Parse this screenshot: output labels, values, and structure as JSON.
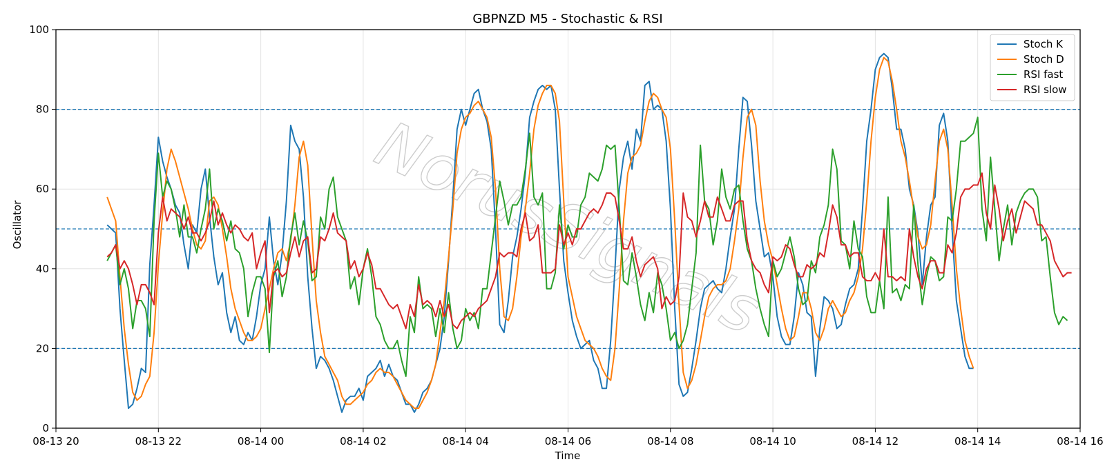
{
  "chart_data": {
    "type": "line",
    "title": "GBPNZD M5 - Stochastic & RSI",
    "xlabel": "Time",
    "ylabel": "Oscillator",
    "ylim": [
      0,
      100
    ],
    "xlim": [
      "08-13 20:00",
      "08-14 16:00"
    ],
    "yticks": [
      "0",
      "20",
      "40",
      "60",
      "80",
      "100"
    ],
    "xticks": [
      "08-13 20",
      "08-13 22",
      "08-14 00",
      "08-14 02",
      "08-14 04",
      "08-14 06",
      "08-14 08",
      "08-14 10",
      "08-14 12",
      "08-14 14",
      "08-14 16"
    ],
    "reference_lines": [
      80,
      50,
      20
    ],
    "grid": true,
    "legend_position": "upper right",
    "x_start": "08-13 21:00",
    "x_step": "5 minutes",
    "watermark": "NorusSignals",
    "series": [
      {
        "name": "Stoch K",
        "color": "#1f77b4",
        "values": [
          51,
          50,
          49,
          30,
          17,
          5,
          6,
          10,
          15,
          14,
          41,
          56,
          73,
          67,
          63,
          60,
          56,
          54,
          46,
          40,
          51,
          49,
          60,
          65,
          53,
          43,
          36,
          39,
          29,
          24,
          28,
          22,
          21,
          24,
          22,
          28,
          36,
          40,
          53,
          42,
          36,
          44,
          57,
          76,
          72,
          70,
          58,
          38,
          25,
          15,
          18,
          17,
          15,
          12,
          8,
          4,
          7,
          8,
          8,
          10,
          7,
          13,
          14,
          15,
          17,
          13,
          16,
          13,
          12,
          9,
          6,
          6,
          4,
          6,
          9,
          10,
          12,
          16,
          20,
          28,
          42,
          58,
          75,
          80,
          76,
          80,
          84,
          85,
          80,
          77,
          70,
          50,
          26,
          24,
          32,
          43,
          48,
          55,
          64,
          78,
          82,
          85,
          86,
          85,
          86,
          80,
          60,
          42,
          34,
          27,
          23,
          20,
          21,
          22,
          17,
          15,
          10,
          10,
          22,
          40,
          60,
          68,
          72,
          65,
          75,
          72,
          86,
          87,
          80,
          81,
          80,
          72,
          55,
          30,
          11,
          8,
          9,
          15,
          22,
          30,
          35,
          36,
          37,
          35,
          34,
          40,
          48,
          55,
          70,
          83,
          82,
          71,
          57,
          50,
          43,
          44,
          38,
          28,
          23,
          21,
          21,
          28,
          39,
          36,
          29,
          28,
          13,
          25,
          33,
          32,
          30,
          25,
          26,
          31,
          35,
          36,
          40,
          55,
          72,
          80,
          90,
          93,
          94,
          93,
          85,
          75,
          75,
          70,
          60,
          56,
          49,
          36,
          48,
          56,
          58,
          76,
          79,
          72,
          50,
          32,
          25,
          18,
          15,
          15
        ]
      },
      {
        "name": "Stoch D",
        "color": "#ff7f0e",
        "values": [
          58,
          55,
          52,
          38,
          25,
          16,
          9,
          7,
          8,
          11,
          13,
          24,
          41,
          54,
          65,
          70,
          67,
          63,
          59,
          55,
          50,
          46,
          45,
          47,
          57,
          58,
          56,
          50,
          43,
          35,
          30,
          27,
          24,
          22,
          22,
          23,
          25,
          30,
          35,
          40,
          44,
          45,
          42,
          47,
          56,
          68,
          72,
          66,
          48,
          32,
          24,
          18,
          16,
          14,
          12,
          8,
          6,
          6,
          7,
          8,
          9,
          11,
          12,
          14,
          15,
          14,
          14,
          13,
          11,
          9,
          7,
          6,
          5,
          5,
          7,
          9,
          12,
          16,
          24,
          32,
          43,
          55,
          69,
          75,
          78,
          79,
          81,
          82,
          80,
          78,
          73,
          60,
          40,
          28,
          27,
          30,
          38,
          48,
          55,
          64,
          75,
          81,
          84,
          86,
          86,
          84,
          77,
          57,
          38,
          33,
          28,
          25,
          22,
          21,
          20,
          18,
          15,
          13,
          12,
          20,
          35,
          52,
          64,
          68,
          69,
          71,
          77,
          82,
          84,
          83,
          80,
          78,
          70,
          52,
          31,
          14,
          10,
          12,
          16,
          22,
          28,
          33,
          35,
          36,
          36,
          37,
          40,
          47,
          55,
          68,
          78,
          80,
          76,
          62,
          52,
          46,
          42,
          36,
          30,
          25,
          22,
          23,
          28,
          34,
          34,
          30,
          24,
          22,
          25,
          30,
          32,
          30,
          28,
          29,
          32,
          34,
          38,
          45,
          57,
          72,
          83,
          90,
          93,
          92,
          87,
          80,
          72,
          68,
          62,
          55,
          48,
          45,
          46,
          51,
          62,
          72,
          75,
          70,
          56,
          40,
          30,
          22,
          18,
          15
        ]
      },
      {
        "name": "RSI fast",
        "color": "#2ca02c",
        "values": [
          42,
          44,
          46,
          36,
          40,
          35,
          25,
          32,
          32,
          30,
          23,
          52,
          69,
          58,
          62,
          60,
          55,
          48,
          56,
          48,
          48,
          44,
          50,
          55,
          65,
          50,
          55,
          52,
          47,
          52,
          45,
          44,
          40,
          28,
          34,
          38,
          38,
          35,
          19,
          38,
          42,
          33,
          38,
          48,
          54,
          46,
          52,
          47,
          37,
          38,
          53,
          50,
          60,
          63,
          53,
          50,
          47,
          35,
          38,
          31,
          40,
          45,
          38,
          28,
          26,
          22,
          20,
          20,
          22,
          17,
          13,
          28,
          24,
          38,
          30,
          31,
          30,
          23,
          30,
          24,
          34,
          25,
          20,
          22,
          30,
          27,
          29,
          25,
          35,
          35,
          44,
          53,
          62,
          57,
          51,
          56,
          56,
          58,
          65,
          74,
          58,
          56,
          59,
          35,
          35,
          39,
          56,
          45,
          51,
          48,
          48,
          56,
          58,
          64,
          63,
          62,
          65,
          71,
          70,
          71,
          55,
          37,
          36,
          44,
          38,
          31,
          27,
          34,
          29,
          39,
          36,
          30,
          22,
          24,
          20,
          22,
          26,
          35,
          44,
          71,
          57,
          55,
          46,
          52,
          65,
          58,
          55,
          60,
          61,
          52,
          45,
          42,
          35,
          30,
          26,
          23,
          42,
          38,
          40,
          44,
          48,
          43,
          35,
          31,
          32,
          42,
          39,
          48,
          51,
          56,
          70,
          65,
          47,
          46,
          40,
          52,
          45,
          43,
          33,
          29,
          29,
          37,
          30,
          58,
          34,
          35,
          32,
          36,
          35,
          56,
          41,
          31,
          38,
          43,
          42,
          37,
          38,
          53,
          52,
          60,
          72,
          72,
          73,
          74,
          78,
          55,
          47,
          68,
          55,
          42,
          50,
          56,
          46,
          54,
          57,
          59,
          60,
          60,
          58,
          47,
          48,
          38,
          29,
          26,
          28,
          27
        ]
      },
      {
        "name": "RSI slow",
        "color": "#d62728",
        "values": [
          43,
          44,
          46,
          40,
          42,
          40,
          36,
          31,
          36,
          36,
          34,
          31,
          49,
          58,
          52,
          55,
          54,
          53,
          50,
          53,
          49,
          49,
          47,
          49,
          52,
          57,
          51,
          54,
          51,
          49,
          51,
          50,
          48,
          47,
          49,
          40,
          44,
          47,
          29,
          39,
          40,
          38,
          39,
          44,
          48,
          43,
          47,
          48,
          39,
          40,
          48,
          47,
          50,
          54,
          49,
          48,
          47,
          40,
          42,
          38,
          40,
          44,
          41,
          35,
          35,
          33,
          31,
          30,
          31,
          28,
          25,
          31,
          28,
          36,
          31,
          32,
          31,
          28,
          32,
          28,
          31,
          26,
          25,
          27,
          28,
          29,
          28,
          30,
          31,
          32,
          35,
          38,
          44,
          43,
          44,
          44,
          43,
          50,
          54,
          47,
          48,
          51,
          39,
          39,
          39,
          40,
          51,
          46,
          49,
          46,
          50,
          50,
          52,
          54,
          55,
          54,
          56,
          59,
          59,
          58,
          52,
          45,
          45,
          48,
          42,
          38,
          41,
          42,
          43,
          40,
          30,
          33,
          31,
          32,
          38,
          59,
          53,
          52,
          48,
          52,
          57,
          53,
          53,
          58,
          55,
          52,
          52,
          56,
          57,
          57,
          47,
          42,
          40,
          39,
          36,
          34,
          43,
          42,
          43,
          46,
          45,
          41,
          38,
          38,
          41,
          40,
          41,
          44,
          43,
          49,
          56,
          53,
          46,
          46,
          43,
          44,
          44,
          38,
          37,
          37,
          39,
          37,
          50,
          38,
          38,
          37,
          38,
          37,
          50,
          43,
          38,
          35,
          40,
          42,
          42,
          39,
          39,
          46,
          44,
          49,
          58,
          60,
          60,
          61,
          61,
          64,
          54,
          50,
          61,
          55,
          47,
          52,
          55,
          49,
          53,
          57,
          56,
          55,
          51,
          51,
          49,
          47,
          42,
          40,
          38,
          39,
          39
        ]
      }
    ]
  }
}
